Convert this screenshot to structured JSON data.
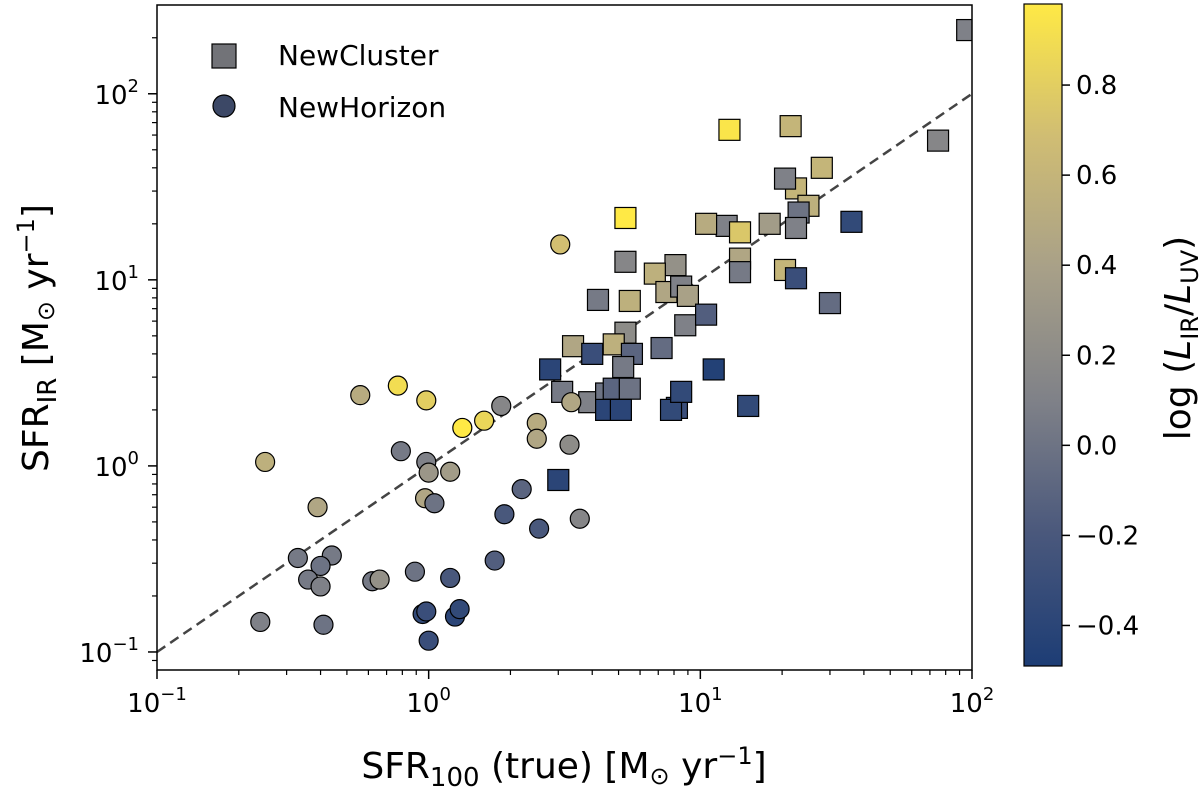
{
  "chart_data": {
    "type": "scatter",
    "title": "",
    "xlabel": {
      "base": "SFR",
      "sub": "100",
      "rest": " (true) [M",
      "odot": "⊙",
      "unit": " yr",
      "sup": "−1",
      "close": "]"
    },
    "ylabel": {
      "base": "SFR",
      "sub": "IR",
      "rest": " [M",
      "odot": "⊙",
      "unit": " yr",
      "sup": "−1",
      "close": "]"
    },
    "x_scale": "log",
    "y_scale": "log",
    "xlim": [
      0.1,
      100
    ],
    "ylim": [
      0.08,
      300
    ],
    "x_ticks": [
      {
        "value": 0.1,
        "base": "10",
        "exp": "−1"
      },
      {
        "value": 1,
        "base": "10",
        "exp": "0"
      },
      {
        "value": 10,
        "base": "10",
        "exp": "1"
      },
      {
        "value": 100,
        "base": "10",
        "exp": "2"
      }
    ],
    "y_ticks": [
      {
        "value": 0.1,
        "base": "10",
        "exp": "−1"
      },
      {
        "value": 1,
        "base": "10",
        "exp": "0"
      },
      {
        "value": 10,
        "base": "10",
        "exp": "1"
      },
      {
        "value": 100,
        "base": "10",
        "exp": "2"
      }
    ],
    "grid": false,
    "legend_position": "top-left",
    "reference_line": {
      "label": "",
      "style": "dashed",
      "color": "#444444",
      "x": [
        0.1,
        100
      ],
      "y": [
        0.1,
        100
      ]
    },
    "colorbar": {
      "label": {
        "prefix": "log (",
        "l1": "L",
        "s1": "IR",
        "slash": "/",
        "l2": "L",
        "s2": "UV",
        "suffix": ")"
      },
      "min": -0.49,
      "max": 0.98,
      "ticks": [
        {
          "value": -0.4,
          "label": "−0.4"
        },
        {
          "value": -0.2,
          "label": "−0.2"
        },
        {
          "value": 0.0,
          "label": "0.0"
        },
        {
          "value": 0.2,
          "label": "0.2"
        },
        {
          "value": 0.4,
          "label": "0.4"
        },
        {
          "value": 0.6,
          "label": "0.6"
        },
        {
          "value": 0.8,
          "label": "0.8"
        }
      ],
      "colors": [
        "#1d3d75",
        "#4a587c",
        "#7f8188",
        "#a8a088",
        "#d0bd73",
        "#ffe945"
      ]
    },
    "series": [
      {
        "name": "NewCluster",
        "marker": "square",
        "legend_color": "#727378",
        "points": [
          [
            96,
            220,
            0.1
          ],
          [
            75,
            56,
            0.15
          ],
          [
            21.5,
            67,
            0.6
          ],
          [
            12.8,
            64,
            0.95
          ],
          [
            28,
            40,
            0.6
          ],
          [
            22.5,
            31,
            0.6
          ],
          [
            25,
            25,
            0.55
          ],
          [
            20.5,
            35,
            0.1
          ],
          [
            23,
            23,
            0.0
          ],
          [
            22.5,
            19,
            0.1
          ],
          [
            18,
            20,
            0.35
          ],
          [
            12.5,
            19.5,
            0.1
          ],
          [
            10.5,
            20,
            0.5
          ],
          [
            14,
            18,
            0.75
          ],
          [
            36,
            20.5,
            -0.35
          ],
          [
            5.3,
            21.5,
            0.98
          ],
          [
            20.5,
            11.3,
            0.6
          ],
          [
            14,
            13,
            0.45
          ],
          [
            14,
            11,
            0.05
          ],
          [
            22.5,
            10.2,
            -0.3
          ],
          [
            30,
            7.5,
            -0.05
          ],
          [
            5.3,
            12.5,
            0.15
          ],
          [
            8.1,
            12,
            0.25
          ],
          [
            6.8,
            10.8,
            0.55
          ],
          [
            7.5,
            8.6,
            0.45
          ],
          [
            8.5,
            9.2,
            0.1
          ],
          [
            9,
            8.2,
            0.4
          ],
          [
            8.8,
            5.7,
            0.1
          ],
          [
            10.5,
            6.5,
            -0.15
          ],
          [
            4.2,
            7.8,
            0.05
          ],
          [
            5.5,
            7.7,
            0.55
          ],
          [
            7.2,
            4.3,
            -0.05
          ],
          [
            5.3,
            5.2,
            0.2
          ],
          [
            4.8,
            4.5,
            0.55
          ],
          [
            5.6,
            4,
            -0.1
          ],
          [
            5.2,
            3.4,
            0.05
          ],
          [
            3.4,
            4.4,
            0.45
          ],
          [
            4,
            4,
            -0.3
          ],
          [
            2.8,
            3.3,
            -0.4
          ],
          [
            3.1,
            2.5,
            0.05
          ],
          [
            3.9,
            2.2,
            0.1
          ],
          [
            4.5,
            2.45,
            0.0
          ],
          [
            4.8,
            2.6,
            -0.1
          ],
          [
            5.5,
            2.6,
            0.0
          ],
          [
            4.5,
            2,
            -0.4
          ],
          [
            5.1,
            2,
            -0.4
          ],
          [
            8.2,
            2.05,
            -0.3
          ],
          [
            7.8,
            2.0,
            -0.35
          ],
          [
            8.5,
            2.5,
            -0.35
          ],
          [
            11.2,
            3.3,
            -0.45
          ],
          [
            15,
            2.1,
            -0.35
          ],
          [
            3,
            0.84,
            -0.4
          ]
        ]
      },
      {
        "name": "NewHorizon",
        "marker": "circle",
        "legend_color": "#3c4866",
        "points": [
          [
            3.05,
            15.5,
            0.7
          ],
          [
            0.77,
            2.7,
            0.9
          ],
          [
            0.56,
            2.4,
            0.5
          ],
          [
            0.98,
            2.25,
            0.8
          ],
          [
            1.33,
            1.6,
            0.98
          ],
          [
            1.6,
            1.75,
            0.85
          ],
          [
            1.85,
            2.1,
            0.15
          ],
          [
            2.5,
            1.7,
            0.5
          ],
          [
            2.5,
            1.4,
            0.45
          ],
          [
            3.35,
            2.2,
            0.45
          ],
          [
            3.3,
            1.3,
            0.2
          ],
          [
            0.25,
            1.05,
            0.55
          ],
          [
            0.79,
            1.2,
            0.05
          ],
          [
            0.98,
            1.05,
            0.1
          ],
          [
            1.0,
            0.92,
            0.3
          ],
          [
            1.2,
            0.93,
            0.35
          ],
          [
            0.97,
            0.67,
            0.45
          ],
          [
            1.05,
            0.63,
            0.0
          ],
          [
            0.39,
            0.6,
            0.45
          ],
          [
            2.2,
            0.75,
            -0.1
          ],
          [
            1.9,
            0.55,
            -0.2
          ],
          [
            2.55,
            0.46,
            -0.2
          ],
          [
            3.6,
            0.52,
            0.15
          ],
          [
            0.33,
            0.32,
            0.05
          ],
          [
            0.44,
            0.33,
            0.05
          ],
          [
            0.4,
            0.29,
            0.0
          ],
          [
            0.36,
            0.245,
            0.05
          ],
          [
            0.4,
            0.225,
            0.1
          ],
          [
            0.62,
            0.24,
            0.05
          ],
          [
            0.66,
            0.245,
            0.25
          ],
          [
            0.89,
            0.27,
            0.0
          ],
          [
            1.2,
            0.25,
            -0.2
          ],
          [
            1.75,
            0.31,
            -0.15
          ],
          [
            0.24,
            0.145,
            0.1
          ],
          [
            0.41,
            0.14,
            0.0
          ],
          [
            0.95,
            0.16,
            -0.35
          ],
          [
            0.98,
            0.165,
            -0.3
          ],
          [
            1.25,
            0.155,
            -0.4
          ],
          [
            1.3,
            0.17,
            -0.35
          ],
          [
            1.0,
            0.115,
            -0.3
          ]
        ]
      }
    ]
  }
}
